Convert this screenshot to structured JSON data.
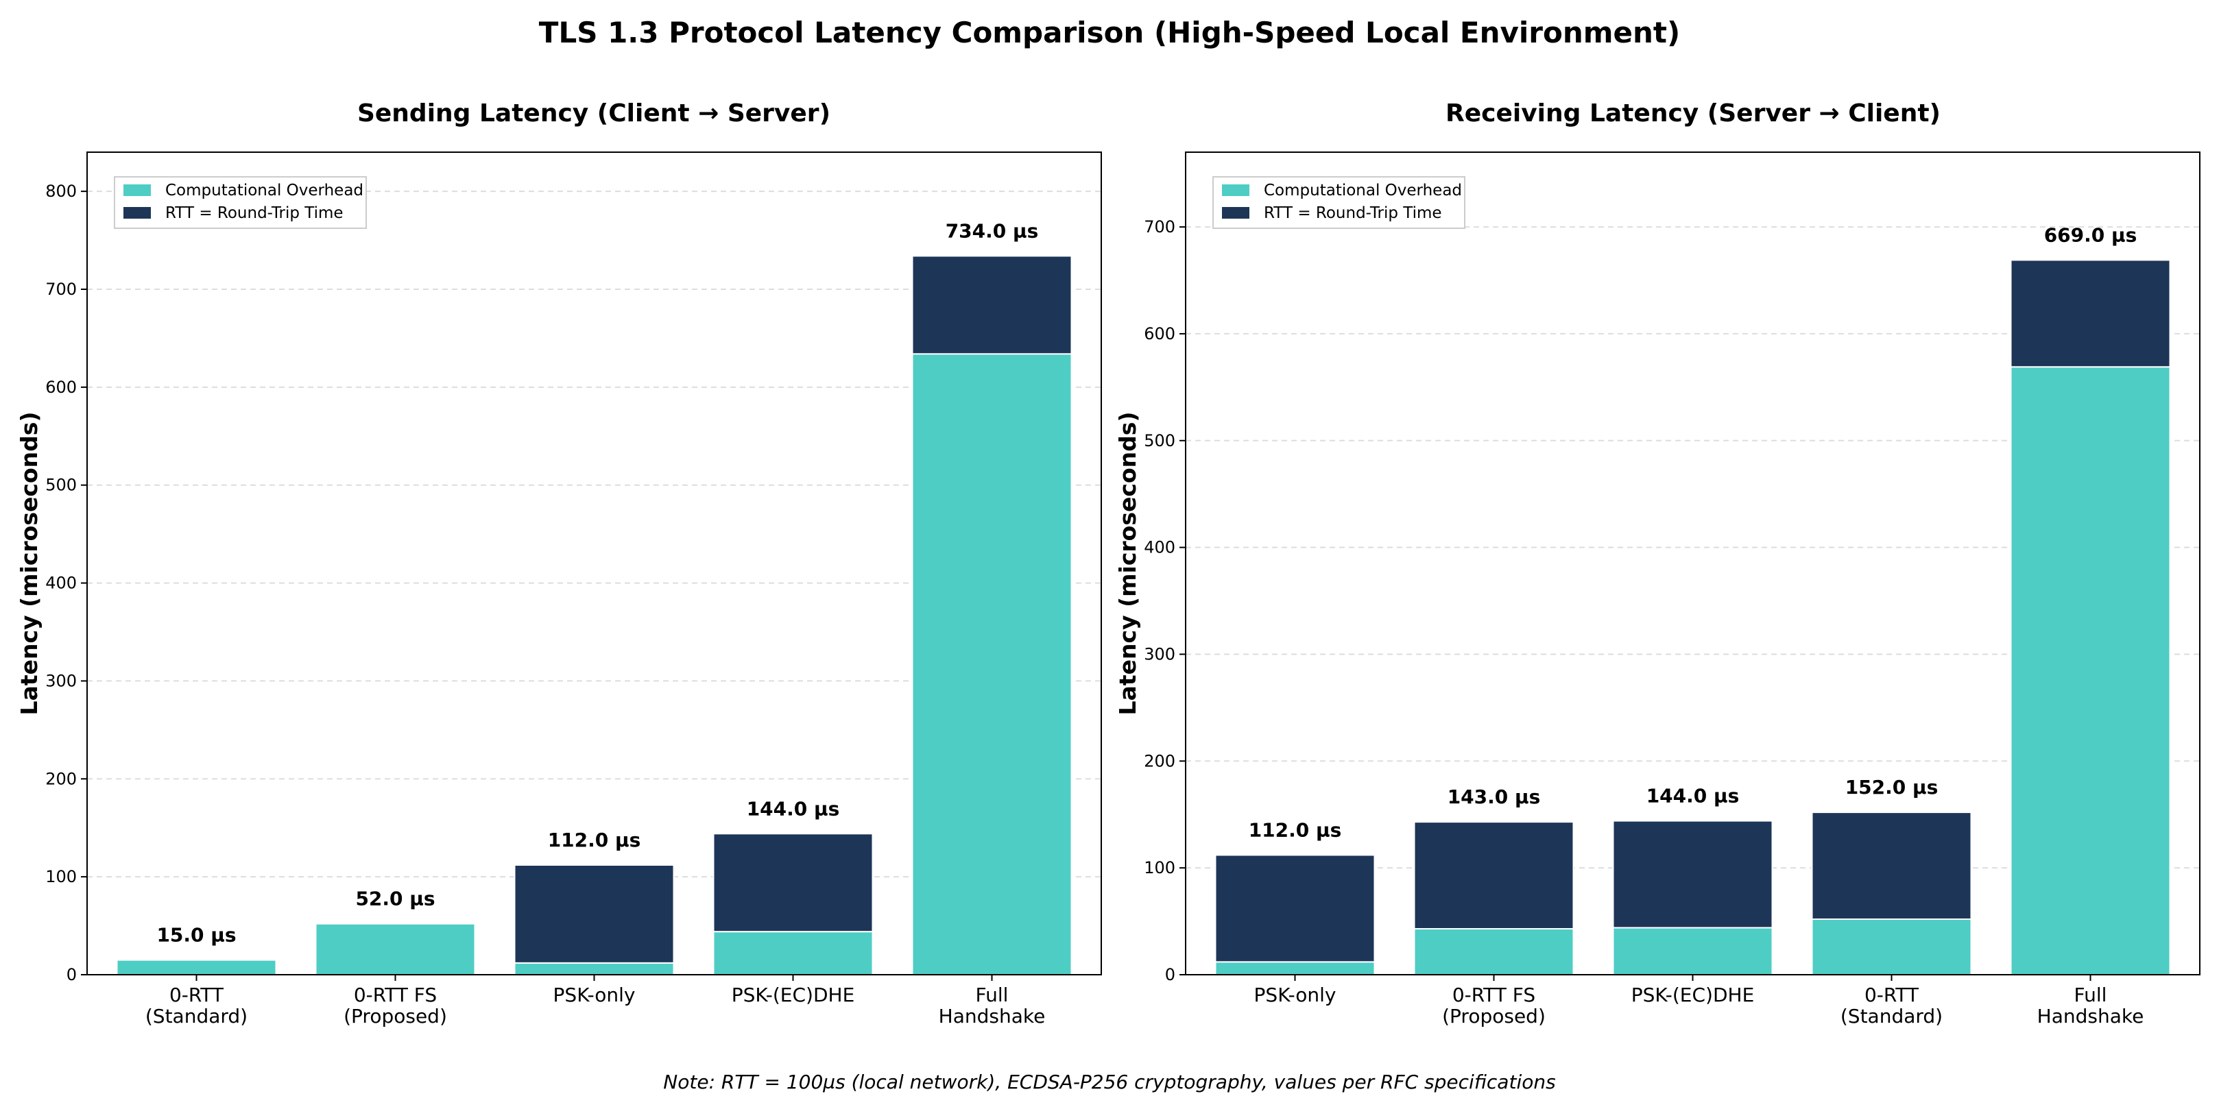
{
  "title": "TLS 1.3 Protocol Latency Comparison (High-Speed Local Environment)",
  "note": "Note: RTT = 100µs (local network), ECDSA-P256 cryptography, values per RFC specifications",
  "colors": {
    "computational": "#4ECDC4",
    "rtt": "#1D3557",
    "grid": "#dddddd"
  },
  "chart_data": [
    {
      "type": "bar",
      "stacked": true,
      "title": "Sending Latency (Client → Server)",
      "xlabel": "",
      "ylabel": "Latency (microseconds)",
      "ylim": [
        0,
        840
      ],
      "yticks": [
        0,
        100,
        200,
        300,
        400,
        500,
        600,
        700,
        800
      ],
      "categories": [
        "0-RTT\n(Standard)",
        "0-RTT FS\n(Proposed)",
        "PSK-only",
        "PSK-(EC)DHE",
        "Full\nHandshake"
      ],
      "series": [
        {
          "name": "Computational Overhead",
          "values": [
            15,
            52,
            12,
            44,
            634
          ]
        },
        {
          "name": "RTT = Round-Trip Time",
          "values": [
            0,
            0,
            100,
            100,
            100
          ]
        }
      ],
      "totals": [
        15,
        52,
        112,
        144,
        734
      ],
      "total_labels": [
        "15.0 µs",
        "52.0 µs",
        "112.0 µs",
        "144.0 µs",
        "734.0 µs"
      ],
      "legend": "top-left",
      "grid": "y-dashed"
    },
    {
      "type": "bar",
      "stacked": true,
      "title": "Receiving Latency (Server → Client)",
      "xlabel": "",
      "ylabel": "Latency (microseconds)",
      "ylim": [
        0,
        770
      ],
      "yticks": [
        0,
        100,
        200,
        300,
        400,
        500,
        600,
        700
      ],
      "categories": [
        "PSK-only",
        "0-RTT FS\n(Proposed)",
        "PSK-(EC)DHE",
        "0-RTT\n(Standard)",
        "Full\nHandshake"
      ],
      "series": [
        {
          "name": "Computational Overhead",
          "values": [
            12,
            43,
            44,
            52,
            569
          ]
        },
        {
          "name": "RTT = Round-Trip Time",
          "values": [
            100,
            100,
            100,
            100,
            100
          ]
        }
      ],
      "totals": [
        112,
        143,
        144,
        152,
        669
      ],
      "total_labels": [
        "112.0 µs",
        "143.0 µs",
        "144.0 µs",
        "152.0 µs",
        "669.0 µs"
      ],
      "legend": "top-left",
      "grid": "y-dashed"
    }
  ]
}
